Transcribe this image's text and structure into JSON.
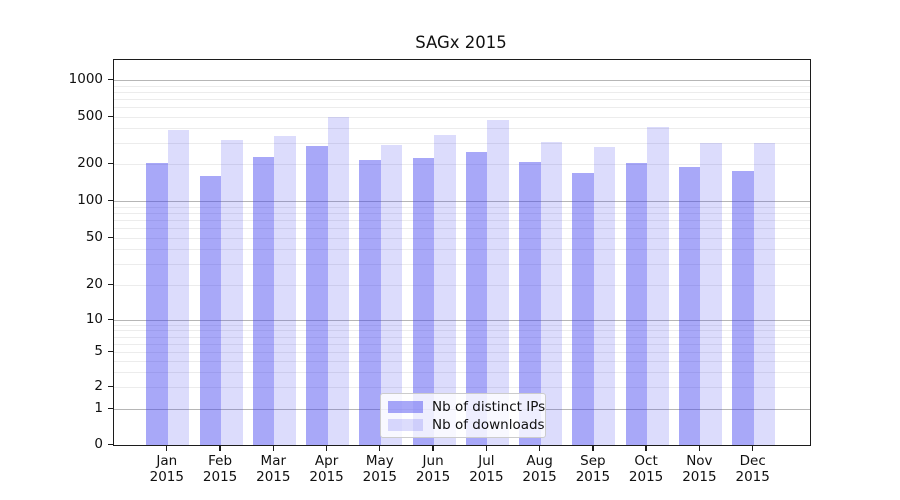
{
  "chart_data": {
    "type": "bar",
    "title": "SAGx 2015",
    "categories": [
      "Jan",
      "Feb",
      "Mar",
      "Apr",
      "May",
      "Jun",
      "Jul",
      "Aug",
      "Sep",
      "Oct",
      "Nov",
      "Dec"
    ],
    "year_label": "2015",
    "series": [
      {
        "name": "Nb of distinct IPs",
        "color": "rgba(62,62,240,0.45)",
        "approx_hex_on_white": "#a8a8f8",
        "values": [
          205,
          160,
          230,
          285,
          215,
          225,
          255,
          210,
          170,
          205,
          190,
          175
        ]
      },
      {
        "name": "Nb of downloads",
        "color": "rgba(62,62,240,0.18)",
        "approx_hex_on_white": "#d9d9fa",
        "values": [
          390,
          320,
          345,
          500,
          290,
          350,
          470,
          310,
          280,
          410,
          300,
          300
        ]
      }
    ],
    "y_axis": {
      "scale": "symlog",
      "ticks": [
        {
          "v": 0,
          "label": "0"
        },
        {
          "v": 1,
          "label": "1"
        },
        {
          "v": 2,
          "label": "2"
        },
        {
          "v": 5,
          "label": "5"
        },
        {
          "v": 10,
          "label": "10"
        },
        {
          "v": 20,
          "label": "20"
        },
        {
          "v": 50,
          "label": "50"
        },
        {
          "v": 100,
          "label": "100"
        },
        {
          "v": 200,
          "label": "200"
        },
        {
          "v": 500,
          "label": "500"
        },
        {
          "v": 1000,
          "label": "1000"
        }
      ]
    },
    "x_axis": {
      "tick_labels_line1": [
        "Jan",
        "Feb",
        "Mar",
        "Apr",
        "May",
        "Jun",
        "Jul",
        "Aug",
        "Sep",
        "Oct",
        "Nov",
        "Dec"
      ],
      "tick_labels_line2": "2015"
    },
    "legend": {
      "position": "lower-center",
      "entries": [
        "Nb of distinct IPs",
        "Nb of downloads"
      ]
    },
    "grid": {
      "major_color": "#b6b6b6",
      "minor_color": "#ececec",
      "major_values": [
        1,
        10,
        100,
        1000
      ],
      "minor_values": [
        2,
        3,
        4,
        5,
        6,
        7,
        8,
        9,
        20,
        30,
        40,
        50,
        60,
        70,
        80,
        90,
        200,
        300,
        400,
        500,
        600,
        700,
        800,
        900
      ]
    }
  }
}
